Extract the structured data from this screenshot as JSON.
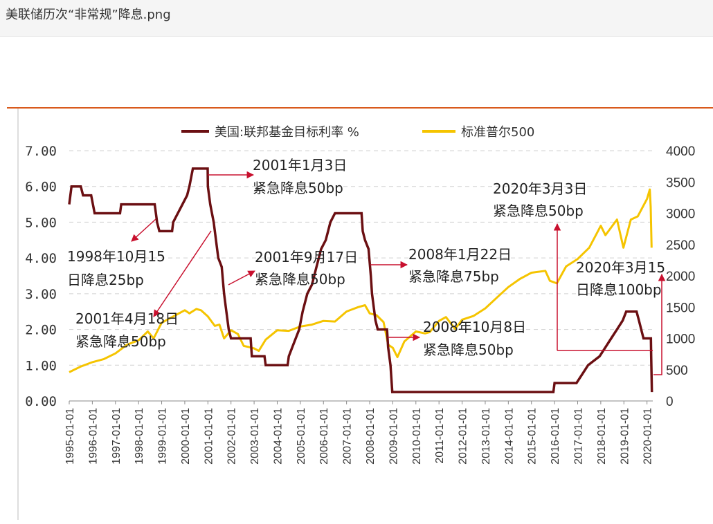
{
  "window": {
    "title": "美联储历次“非常规”降息.png"
  },
  "chart_data": {
    "type": "line",
    "legend": [
      {
        "name": "美国:联邦基金目标利率 %",
        "color": "#6b0f12"
      },
      {
        "name": "标准普尔500",
        "color": "#f5c400"
      }
    ],
    "legend_position": "top",
    "grid": "horizontal-dashed",
    "x_ticks": [
      "1995-01-01",
      "1996-01-01",
      "1997-01-01",
      "1998-01-01",
      "1999-01-01",
      "2000-01-01",
      "2001-01-01",
      "2002-01-01",
      "2003-01-01",
      "2004-01-01",
      "2005-01-01",
      "2006-01-01",
      "2007-01-01",
      "2008-01-01",
      "2009-01-01",
      "2010-01-01",
      "2011-01-01",
      "2012-01-01",
      "2013-01-01",
      "2014-01-01",
      "2015-01-01",
      "2016-01-01",
      "2017-01-01",
      "2018-01-01",
      "2019-01-01",
      "2020-01-01"
    ],
    "y_left": {
      "ticks": [
        "0.00",
        "1.00",
        "2.00",
        "3.00",
        "4.00",
        "5.00",
        "6.00",
        "7.00"
      ],
      "range": [
        0,
        7
      ]
    },
    "y_right": {
      "ticks": [
        "0",
        "500",
        "1000",
        "1500",
        "2000",
        "2500",
        "3000",
        "3500",
        "4000"
      ],
      "range": [
        0,
        4000
      ]
    },
    "series": [
      {
        "name": "美国:联邦基金目标利率 %",
        "axis": "left",
        "color": "#6b0f12",
        "points": [
          [
            1995.0,
            5.5
          ],
          [
            1995.1,
            6.0
          ],
          [
            1995.5,
            6.0
          ],
          [
            1995.6,
            5.75
          ],
          [
            1995.95,
            5.75
          ],
          [
            1996.1,
            5.25
          ],
          [
            1997.2,
            5.25
          ],
          [
            1997.25,
            5.5
          ],
          [
            1998.7,
            5.5
          ],
          [
            1998.8,
            5.0
          ],
          [
            1998.9,
            4.75
          ],
          [
            1999.45,
            4.75
          ],
          [
            1999.5,
            5.0
          ],
          [
            1999.7,
            5.25
          ],
          [
            1999.9,
            5.5
          ],
          [
            2000.1,
            5.75
          ],
          [
            2000.2,
            6.0
          ],
          [
            2000.35,
            6.5
          ],
          [
            2000.99,
            6.5
          ],
          [
            2001.0,
            6.0
          ],
          [
            2001.1,
            5.5
          ],
          [
            2001.25,
            5.0
          ],
          [
            2001.35,
            4.5
          ],
          [
            2001.45,
            4.0
          ],
          [
            2001.6,
            3.75
          ],
          [
            2001.7,
            3.0
          ],
          [
            2001.8,
            2.5
          ],
          [
            2001.9,
            2.0
          ],
          [
            2002.0,
            1.75
          ],
          [
            2002.85,
            1.75
          ],
          [
            2002.9,
            1.25
          ],
          [
            2003.45,
            1.25
          ],
          [
            2003.5,
            1.0
          ],
          [
            2004.45,
            1.0
          ],
          [
            2004.5,
            1.25
          ],
          [
            2004.65,
            1.5
          ],
          [
            2004.8,
            1.75
          ],
          [
            2004.95,
            2.0
          ],
          [
            2005.1,
            2.5
          ],
          [
            2005.3,
            3.0
          ],
          [
            2005.5,
            3.25
          ],
          [
            2005.7,
            3.75
          ],
          [
            2005.9,
            4.25
          ],
          [
            2006.1,
            4.5
          ],
          [
            2006.3,
            5.0
          ],
          [
            2006.5,
            5.25
          ],
          [
            2007.65,
            5.25
          ],
          [
            2007.7,
            4.75
          ],
          [
            2007.8,
            4.5
          ],
          [
            2007.95,
            4.25
          ],
          [
            2008.05,
            3.5
          ],
          [
            2008.1,
            3.0
          ],
          [
            2008.25,
            2.25
          ],
          [
            2008.35,
            2.0
          ],
          [
            2008.75,
            2.0
          ],
          [
            2008.8,
            1.5
          ],
          [
            2008.9,
            1.0
          ],
          [
            2008.98,
            0.25
          ],
          [
            2015.95,
            0.25
          ],
          [
            2016.0,
            0.5
          ],
          [
            2016.95,
            0.5
          ],
          [
            2017.2,
            0.75
          ],
          [
            2017.45,
            1.0
          ],
          [
            2017.95,
            1.25
          ],
          [
            2018.2,
            1.5
          ],
          [
            2018.45,
            1.75
          ],
          [
            2018.7,
            2.0
          ],
          [
            2018.95,
            2.25
          ],
          [
            2019.1,
            2.5
          ],
          [
            2019.55,
            2.5
          ],
          [
            2019.65,
            2.25
          ],
          [
            2019.75,
            2.0
          ],
          [
            2019.85,
            1.75
          ],
          [
            2020.17,
            1.75
          ],
          [
            2020.18,
            1.25
          ],
          [
            2020.21,
            0.25
          ]
        ]
      },
      {
        "name": "标准普尔500",
        "axis": "right",
        "color": "#f5c400",
        "points": [
          [
            1995.0,
            460
          ],
          [
            1995.5,
            550
          ],
          [
            1996.0,
            620
          ],
          [
            1996.5,
            670
          ],
          [
            1997.0,
            760
          ],
          [
            1997.5,
            900
          ],
          [
            1998.0,
            970
          ],
          [
            1998.4,
            1110
          ],
          [
            1998.65,
            1000
          ],
          [
            1999.0,
            1250
          ],
          [
            1999.5,
            1350
          ],
          [
            2000.0,
            1450
          ],
          [
            2000.2,
            1400
          ],
          [
            2000.5,
            1470
          ],
          [
            2000.7,
            1450
          ],
          [
            2001.0,
            1350
          ],
          [
            2001.3,
            1200
          ],
          [
            2001.5,
            1220
          ],
          [
            2001.7,
            1000
          ],
          [
            2002.0,
            1130
          ],
          [
            2002.3,
            1070
          ],
          [
            2002.55,
            880
          ],
          [
            2002.8,
            860
          ],
          [
            2003.0,
            840
          ],
          [
            2003.2,
            800
          ],
          [
            2003.5,
            980
          ],
          [
            2004.0,
            1130
          ],
          [
            2004.5,
            1120
          ],
          [
            2005.0,
            1190
          ],
          [
            2005.5,
            1220
          ],
          [
            2006.0,
            1280
          ],
          [
            2006.5,
            1270
          ],
          [
            2007.0,
            1430
          ],
          [
            2007.5,
            1500
          ],
          [
            2007.8,
            1530
          ],
          [
            2008.0,
            1400
          ],
          [
            2008.3,
            1370
          ],
          [
            2008.6,
            1260
          ],
          [
            2008.8,
            900
          ],
          [
            2009.0,
            850
          ],
          [
            2009.2,
            700
          ],
          [
            2009.5,
            950
          ],
          [
            2010.0,
            1110
          ],
          [
            2010.4,
            1080
          ],
          [
            2010.6,
            1100
          ],
          [
            2011.0,
            1280
          ],
          [
            2011.3,
            1340
          ],
          [
            2011.7,
            1150
          ],
          [
            2012.0,
            1300
          ],
          [
            2012.5,
            1360
          ],
          [
            2013.0,
            1480
          ],
          [
            2013.5,
            1650
          ],
          [
            2014.0,
            1820
          ],
          [
            2014.5,
            1950
          ],
          [
            2015.0,
            2050
          ],
          [
            2015.6,
            2080
          ],
          [
            2015.8,
            1920
          ],
          [
            2016.1,
            1880
          ],
          [
            2016.5,
            2150
          ],
          [
            2017.0,
            2270
          ],
          [
            2017.5,
            2450
          ],
          [
            2018.0,
            2800
          ],
          [
            2018.2,
            2650
          ],
          [
            2018.7,
            2900
          ],
          [
            2018.98,
            2450
          ],
          [
            2019.3,
            2900
          ],
          [
            2019.6,
            2950
          ],
          [
            2020.0,
            3230
          ],
          [
            2020.12,
            3380
          ],
          [
            2020.16,
            3100
          ],
          [
            2020.2,
            2450
          ]
        ]
      }
    ],
    "annotations": [
      {
        "lines": [
          "1998年10月15",
          "日降息25bp"
        ]
      },
      {
        "lines": [
          "2001年1月3日",
          "紧急降息50bp"
        ]
      },
      {
        "lines": [
          "2001年4月18日",
          "紧急降息50bp"
        ]
      },
      {
        "lines": [
          "2001年9月17日",
          "紧急降息50bp"
        ]
      },
      {
        "lines": [
          "2008年1月22日",
          "紧急降息75bp"
        ]
      },
      {
        "lines": [
          "2008年10月8日",
          "紧急降息50bp"
        ]
      },
      {
        "lines": [
          "2020年3月3日",
          "紧急降息50bp"
        ]
      },
      {
        "lines": [
          "2020年3月15",
          "日降息100bp"
        ]
      }
    ]
  }
}
